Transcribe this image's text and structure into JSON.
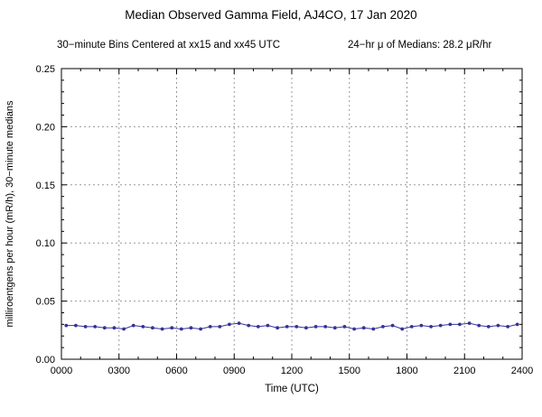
{
  "chart_data": {
    "type": "line",
    "title": "Median Observed Gamma Field, AJ4CO, 17 Jan 2020",
    "subtitle_left": "30−minute Bins Centered at xx15 and xx45 UTC",
    "subtitle_right": "24−hr μ of Medians: 28.2 μR/hr",
    "xlabel": "Time (UTC)",
    "ylabel": "milliroentgens per hour (mR/h), 30−minute medians",
    "xlim": [
      0,
      24
    ],
    "ylim": [
      0,
      0.25
    ],
    "x_ticks": [
      0,
      3,
      6,
      9,
      12,
      15,
      18,
      21,
      24
    ],
    "x_tick_labels": [
      "0000",
      "0300",
      "0600",
      "0900",
      "1200",
      "1500",
      "1800",
      "2100",
      "2400"
    ],
    "y_ticks": [
      0,
      0.05,
      0.1,
      0.15,
      0.2,
      0.25
    ],
    "y_tick_labels": [
      "0.00",
      "0.05",
      "0.10",
      "0.15",
      "0.20",
      "0.25"
    ],
    "grid": true,
    "legend": "none",
    "line_color": "#333399",
    "grid_color": "#999999",
    "marker": "circle",
    "mean_of_medians_uR_per_hr": 28.2,
    "x_hours": [
      0.25,
      0.75,
      1.25,
      1.75,
      2.25,
      2.75,
      3.25,
      3.75,
      4.25,
      4.75,
      5.25,
      5.75,
      6.25,
      6.75,
      7.25,
      7.75,
      8.25,
      8.75,
      9.25,
      9.75,
      10.25,
      10.75,
      11.25,
      11.75,
      12.25,
      12.75,
      13.25,
      13.75,
      14.25,
      14.75,
      15.25,
      15.75,
      16.25,
      16.75,
      17.25,
      17.75,
      18.25,
      18.75,
      19.25,
      19.75,
      20.25,
      20.75,
      21.25,
      21.75,
      22.25,
      22.75,
      23.25,
      23.75
    ],
    "y_values": [
      0.029,
      0.029,
      0.028,
      0.028,
      0.027,
      0.027,
      0.026,
      0.029,
      0.028,
      0.027,
      0.026,
      0.027,
      0.026,
      0.027,
      0.026,
      0.028,
      0.028,
      0.03,
      0.031,
      0.029,
      0.028,
      0.029,
      0.027,
      0.028,
      0.028,
      0.027,
      0.028,
      0.028,
      0.027,
      0.028,
      0.026,
      0.027,
      0.026,
      0.028,
      0.029,
      0.026,
      0.028,
      0.029,
      0.028,
      0.029,
      0.03,
      0.03,
      0.031,
      0.029,
      0.028,
      0.029,
      0.028,
      0.03
    ]
  }
}
